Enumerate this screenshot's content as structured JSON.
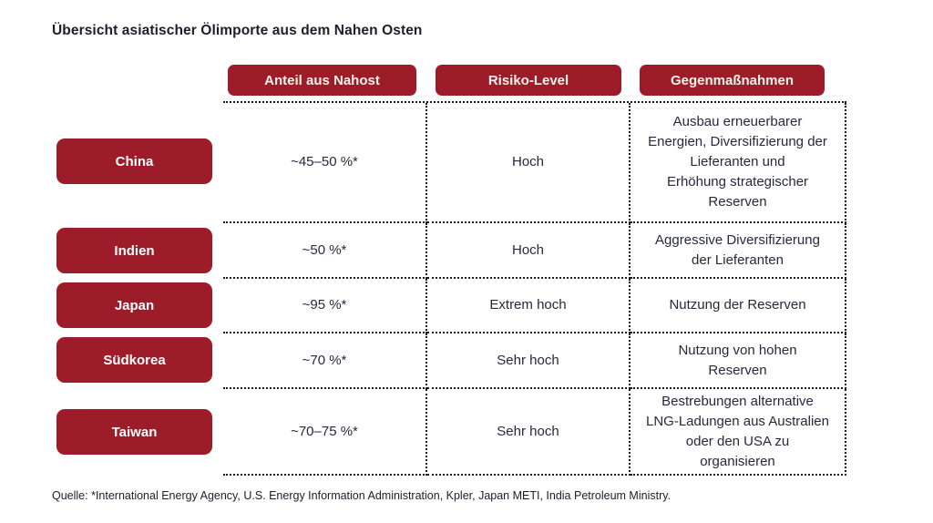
{
  "page": {
    "title": "Übersicht asiatischer Ölimporte aus dem Nahen Osten",
    "source_note": "Quelle: *International Energy Agency, U.S. Energy Information Administration, Kpler, Japan METI, India Petroleum Ministry."
  },
  "colors": {
    "accent_red": "#9D1C29",
    "header_text": "#FAF3E8",
    "pill_text": "#FFFFFF",
    "body_text": "#28283E",
    "title_text": "#1D1D2F",
    "grid_border": "#1A1A1A",
    "background": "#FFFFFF"
  },
  "chart_data": {
    "type": "table",
    "title": "Übersicht asiatischer Ölimporte aus dem Nahen Osten",
    "columns": [
      "Anteil aus Nahost",
      "Risiko-Level",
      "Gegenmaßnahmen"
    ],
    "row_header_field": "country",
    "grid": "dotted",
    "legend_position": "none",
    "rows": [
      {
        "country": "China",
        "anteil_aus_nahost": "~45–50 %*",
        "risiko_level": "Hoch",
        "gegenmassnahmen": "Ausbau erneuerbarer\nEnergien, Diversifizierung der\nLieferanten und\nErhöhung strategischer\nReserven"
      },
      {
        "country": "Indien",
        "anteil_aus_nahost": "~50 %*",
        "risiko_level": "Hoch",
        "gegenmassnahmen": "Aggressive Diversifizierung\nder Lieferanten"
      },
      {
        "country": "Japan",
        "anteil_aus_nahost": "~95 %*",
        "risiko_level": "Extrem hoch",
        "gegenmassnahmen": "Nutzung der Reserven"
      },
      {
        "country": "Südkorea",
        "anteil_aus_nahost": "~70 %*",
        "risiko_level": "Sehr hoch",
        "gegenmassnahmen": "Nutzung von hohen\nReserven"
      },
      {
        "country": "Taiwan",
        "anteil_aus_nahost": "~70–75 %*",
        "risiko_level": "Sehr hoch",
        "gegenmassnahmen": "Bestrebungen alternative\nLNG-Ladungen aus Australien\noder den USA zu\norganisieren"
      }
    ],
    "source_note": "Quelle: *International Energy Agency, U.S. Energy Information Administration, Kpler, Japan METI, India Petroleum Ministry."
  }
}
